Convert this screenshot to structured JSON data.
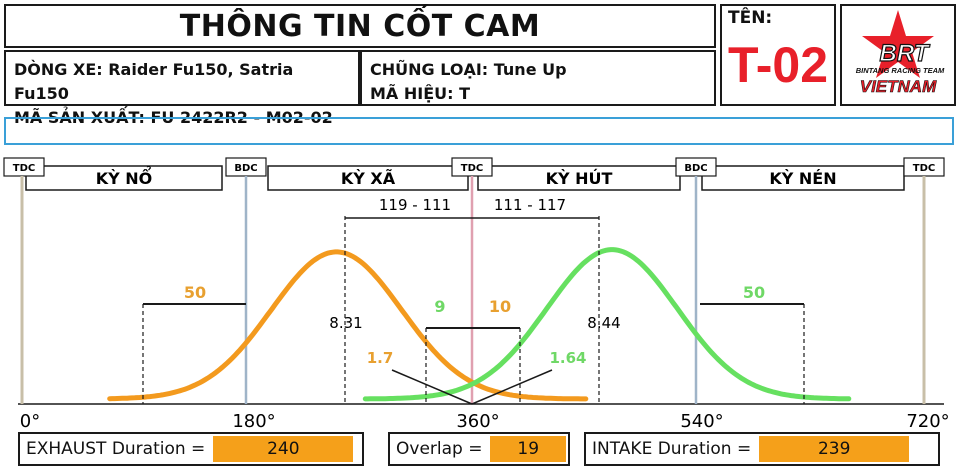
{
  "header": {
    "title": "THÔNG TIN CỐT CAM",
    "vehicle": "DÒNG XE: Raider Fu150, Satria Fu150",
    "code": "MÃ SẢN XUẤT: FU 2422R2 - M02-02",
    "type": "CHŨNG LOẠI: Tune Up",
    "model": "MÃ HIỆU: T",
    "name_label": "TÊN:",
    "name_value": "T-02"
  },
  "logo": {
    "brand": "BRT",
    "team": "BINTANG RACING TEAM",
    "country": "VIETNAM"
  },
  "strokes": [
    {
      "name": "KỲ NỔ"
    },
    {
      "name": "KỲ XÃ"
    },
    {
      "name": "KỲ HÚT"
    },
    {
      "name": "KỲ NÉN"
    }
  ],
  "markers": [
    "TDC",
    "BDC",
    "TDC",
    "BDC",
    "TDC"
  ],
  "degrees": [
    "0°",
    "180°",
    "360°",
    "540°",
    "720°"
  ],
  "annotations": {
    "exhaust_center": "119 - 111",
    "intake_center": "111 - 117",
    "exhaust_open": "50",
    "intake_close": "50",
    "exhaust_close": "9",
    "intake_open": "10",
    "exhaust_lift": "8.31",
    "intake_lift": "8.44",
    "exhaust_tdc_lift": "1.7",
    "intake_tdc_lift": "1.64"
  },
  "curves": {
    "exhaust_color": "#f39a1e",
    "intake_color": "#66e060",
    "exhaust_peak_deg": 251,
    "intake_peak_deg": 471,
    "exhaust_peak_lift": 8.31,
    "intake_peak_lift": 8.44
  },
  "summary": {
    "exhaust_label": "EXHAUST Duration =",
    "exhaust_value": "240",
    "overlap_label": "Overlap =",
    "overlap_value": "19",
    "intake_label": "INTAKE Duration =",
    "intake_value": "239"
  }
}
